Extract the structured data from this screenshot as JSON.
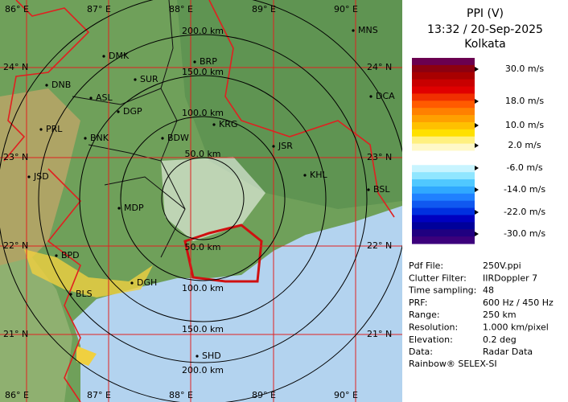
{
  "panel": {
    "title": "PPI (V)",
    "datetime": "13:32 / 20-Sep-2025",
    "station": "Kolkata",
    "scale_colors": [
      "#6a0050",
      "#8c0010",
      "#a80000",
      "#c80000",
      "#e00000",
      "#f03000",
      "#ff5a00",
      "#ff8000",
      "#ffa000",
      "#ffc000",
      "#ffe000",
      "#fff080",
      "#fff8c8",
      "#ffffff",
      "#ffffff",
      "#c8f4ff",
      "#90e6ff",
      "#50c8ff",
      "#30a8ff",
      "#2080ff",
      "#1058f0",
      "#0030e0",
      "#0000c0",
      "#00009a",
      "#200080",
      "#3c007c"
    ],
    "legend": [
      "30.0 m/s",
      "18.0 m/s",
      "10.0 m/s",
      "2.0 m/s",
      "-6.0 m/s",
      "-14.0 m/s",
      "-22.0 m/s",
      "-30.0 m/s"
    ],
    "info": [
      [
        "Pdf File:",
        "250V.ppi"
      ],
      [
        "Clutter Filter:",
        "IIRDoppler 7"
      ],
      [
        "Time sampling:",
        "48"
      ],
      [
        "PRF:",
        "600 Hz / 450 Hz"
      ],
      [
        "Range:",
        "250 km"
      ],
      [
        "Resolution:",
        "1.000 km/pixel"
      ],
      [
        "Elevation:",
        "0.2 deg"
      ],
      [
        "Data:",
        "Radar Data"
      ]
    ],
    "footer": "Rainbow® SELEX-SI"
  },
  "map": {
    "longitudes": [
      "86° E",
      "87° E",
      "88° E",
      "89° E",
      "90° E"
    ],
    "latitudes": [
      "24° N",
      "23° N",
      "22° N",
      "21° N"
    ],
    "ring_labels_top": [
      "50.0 km",
      "100.0 km",
      "150.0 km",
      "200.0 km"
    ],
    "ring_labels_bottom": [
      "50.0 km",
      "100.0 km",
      "150.0 km",
      "200.0 km"
    ],
    "cities": [
      "MNS",
      "DMK",
      "BRP",
      "DNB",
      "SUR",
      "DCA",
      "ASL",
      "DGP",
      "PRL",
      "BNK",
      "KRG",
      "BDW",
      "JSR",
      "JSD",
      "KHL",
      "BSL",
      "MDP",
      "BPD",
      "DGH",
      "BLS",
      "SHD"
    ]
  }
}
